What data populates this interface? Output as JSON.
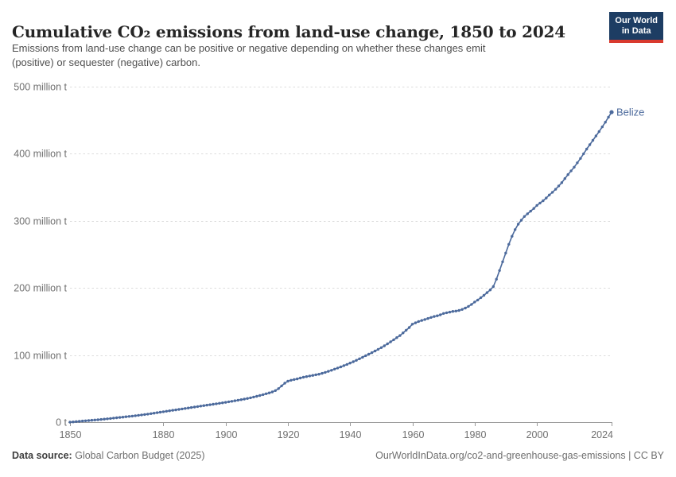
{
  "header": {
    "title": "Cumulative CO₂ emissions from land-use change, 1850 to 2024",
    "subtitle_line1": "Emissions from land-use change can be positive or negative depending on whether these changes emit",
    "subtitle_line2": "(positive) or sequester (negative) carbon.",
    "logo": {
      "line1": "Our World",
      "line2": "in Data"
    }
  },
  "footer": {
    "source_label": "Data source:",
    "source_value": "Global Carbon Budget (2025)",
    "attribution": "OurWorldInData.org/co2-and-greenhouse-gas-emissions | CC BY"
  },
  "colors": {
    "accent_line": "#4c6a9c",
    "logo_navy": "#1d3d63",
    "logo_red": "#d93a2e",
    "grid": "#dcdcdc",
    "axis": "#999999",
    "tick_label": "#707070"
  },
  "chart_data": {
    "type": "line",
    "title": "Cumulative CO₂ emissions from land-use change, 1850 to 2024",
    "unit": "million t",
    "xlabel": "",
    "ylabel": "",
    "xlim": [
      1850,
      2024
    ],
    "ylim": [
      0,
      500
    ],
    "grid": "horizontal-dashed",
    "legend_position": "end-of-line-label",
    "xticks": [
      1850,
      1880,
      1900,
      1920,
      1940,
      1960,
      1980,
      2000,
      2024
    ],
    "yticks": [
      0,
      100,
      200,
      300,
      400,
      500
    ],
    "ytick_labels": [
      "0 t",
      "100 million t",
      "200 million t",
      "300 million t",
      "400 million t",
      "500 million t"
    ],
    "series": [
      {
        "name": "Belize",
        "color": "#4c6a9c",
        "end_label": "Belize",
        "points": [
          [
            1850,
            0
          ],
          [
            1851,
            0.4
          ],
          [
            1852,
            0.8
          ],
          [
            1853,
            1.2
          ],
          [
            1854,
            1.6
          ],
          [
            1855,
            2
          ],
          [
            1856,
            2.4
          ],
          [
            1857,
            2.8
          ],
          [
            1858,
            3.2
          ],
          [
            1859,
            3.6
          ],
          [
            1860,
            4
          ],
          [
            1861,
            4.5
          ],
          [
            1862,
            5
          ],
          [
            1863,
            5.5
          ],
          [
            1864,
            6
          ],
          [
            1865,
            6.5
          ],
          [
            1866,
            7
          ],
          [
            1867,
            7.5
          ],
          [
            1868,
            8
          ],
          [
            1869,
            8.5
          ],
          [
            1870,
            9
          ],
          [
            1871,
            9.6
          ],
          [
            1872,
            10.2
          ],
          [
            1873,
            10.8
          ],
          [
            1874,
            11.4
          ],
          [
            1875,
            12
          ],
          [
            1876,
            12.7
          ],
          [
            1877,
            13.4
          ],
          [
            1878,
            14.1
          ],
          [
            1879,
            14.8
          ],
          [
            1880,
            15.5
          ],
          [
            1881,
            16.2
          ],
          [
            1882,
            16.9
          ],
          [
            1883,
            17.6
          ],
          [
            1884,
            18.3
          ],
          [
            1885,
            19
          ],
          [
            1886,
            19.7
          ],
          [
            1887,
            20.4
          ],
          [
            1888,
            21.1
          ],
          [
            1889,
            21.8
          ],
          [
            1890,
            22.5
          ],
          [
            1891,
            23.2
          ],
          [
            1892,
            23.9
          ],
          [
            1893,
            24.6
          ],
          [
            1894,
            25.3
          ],
          [
            1895,
            26
          ],
          [
            1896,
            26.7
          ],
          [
            1897,
            27.4
          ],
          [
            1898,
            28.1
          ],
          [
            1899,
            28.8
          ],
          [
            1900,
            29.5
          ],
          [
            1901,
            30.3
          ],
          [
            1902,
            31.1
          ],
          [
            1903,
            31.9
          ],
          [
            1904,
            32.7
          ],
          [
            1905,
            33.5
          ],
          [
            1906,
            34.4
          ],
          [
            1907,
            35.3
          ],
          [
            1908,
            36.3
          ],
          [
            1909,
            37.4
          ],
          [
            1910,
            38.5
          ],
          [
            1911,
            39.7
          ],
          [
            1912,
            41
          ],
          [
            1913,
            42.3
          ],
          [
            1914,
            43.6
          ],
          [
            1915,
            45
          ],
          [
            1916,
            47
          ],
          [
            1917,
            50
          ],
          [
            1918,
            54
          ],
          [
            1919,
            58
          ],
          [
            1920,
            61
          ],
          [
            1921,
            62.5
          ],
          [
            1922,
            63.5
          ],
          [
            1923,
            64.5
          ],
          [
            1924,
            65.7
          ],
          [
            1925,
            67
          ],
          [
            1926,
            67.9
          ],
          [
            1927,
            68.8
          ],
          [
            1928,
            69.7
          ],
          [
            1929,
            70.6
          ],
          [
            1930,
            71.5
          ],
          [
            1931,
            72.8
          ],
          [
            1932,
            74.2
          ],
          [
            1933,
            75.7
          ],
          [
            1934,
            77.3
          ],
          [
            1935,
            79
          ],
          [
            1936,
            80.7
          ],
          [
            1937,
            82.4
          ],
          [
            1938,
            84.2
          ],
          [
            1939,
            86
          ],
          [
            1940,
            88
          ],
          [
            1941,
            90.1
          ],
          [
            1942,
            92.2
          ],
          [
            1943,
            94.4
          ],
          [
            1944,
            96.7
          ],
          [
            1945,
            99
          ],
          [
            1946,
            101.3
          ],
          [
            1947,
            103.6
          ],
          [
            1948,
            106
          ],
          [
            1949,
            108.5
          ],
          [
            1950,
            111
          ],
          [
            1951,
            113.8
          ],
          [
            1952,
            116.7
          ],
          [
            1953,
            119.7
          ],
          [
            1954,
            122.8
          ],
          [
            1955,
            126
          ],
          [
            1956,
            129
          ],
          [
            1957,
            133
          ],
          [
            1958,
            137
          ],
          [
            1959,
            141
          ],
          [
            1960,
            146
          ],
          [
            1961,
            148
          ],
          [
            1962,
            150
          ],
          [
            1963,
            151.5
          ],
          [
            1964,
            153
          ],
          [
            1965,
            154.5
          ],
          [
            1966,
            156
          ],
          [
            1967,
            157.5
          ],
          [
            1968,
            158.5
          ],
          [
            1969,
            160
          ],
          [
            1970,
            162
          ],
          [
            1971,
            163
          ],
          [
            1972,
            164
          ],
          [
            1973,
            165
          ],
          [
            1974,
            165.5
          ],
          [
            1975,
            166.5
          ],
          [
            1976,
            168
          ],
          [
            1977,
            170
          ],
          [
            1978,
            172.5
          ],
          [
            1979,
            175.5
          ],
          [
            1980,
            179
          ],
          [
            1981,
            182
          ],
          [
            1982,
            185.5
          ],
          [
            1983,
            189
          ],
          [
            1984,
            193
          ],
          [
            1985,
            197
          ],
          [
            1986,
            202
          ],
          [
            1987,
            213
          ],
          [
            1988,
            226
          ],
          [
            1989,
            239
          ],
          [
            1990,
            252
          ],
          [
            1991,
            265
          ],
          [
            1992,
            277
          ],
          [
            1993,
            287
          ],
          [
            1994,
            295
          ],
          [
            1995,
            301
          ],
          [
            1996,
            306.5
          ],
          [
            1997,
            310.5
          ],
          [
            1998,
            314.5
          ],
          [
            1999,
            318.5
          ],
          [
            2000,
            323
          ],
          [
            2001,
            326.5
          ],
          [
            2002,
            330
          ],
          [
            2003,
            334
          ],
          [
            2004,
            338.5
          ],
          [
            2005,
            342.5
          ],
          [
            2006,
            347
          ],
          [
            2007,
            352
          ],
          [
            2008,
            357
          ],
          [
            2009,
            363
          ],
          [
            2010,
            369
          ],
          [
            2011,
            374.5
          ],
          [
            2012,
            380
          ],
          [
            2013,
            386.5
          ],
          [
            2014,
            393
          ],
          [
            2015,
            400
          ],
          [
            2016,
            407
          ],
          [
            2017,
            413.5
          ],
          [
            2018,
            420
          ],
          [
            2019,
            426.5
          ],
          [
            2020,
            433
          ],
          [
            2021,
            440
          ],
          [
            2022,
            447
          ],
          [
            2023,
            454.5
          ],
          [
            2024,
            462
          ]
        ]
      }
    ]
  }
}
